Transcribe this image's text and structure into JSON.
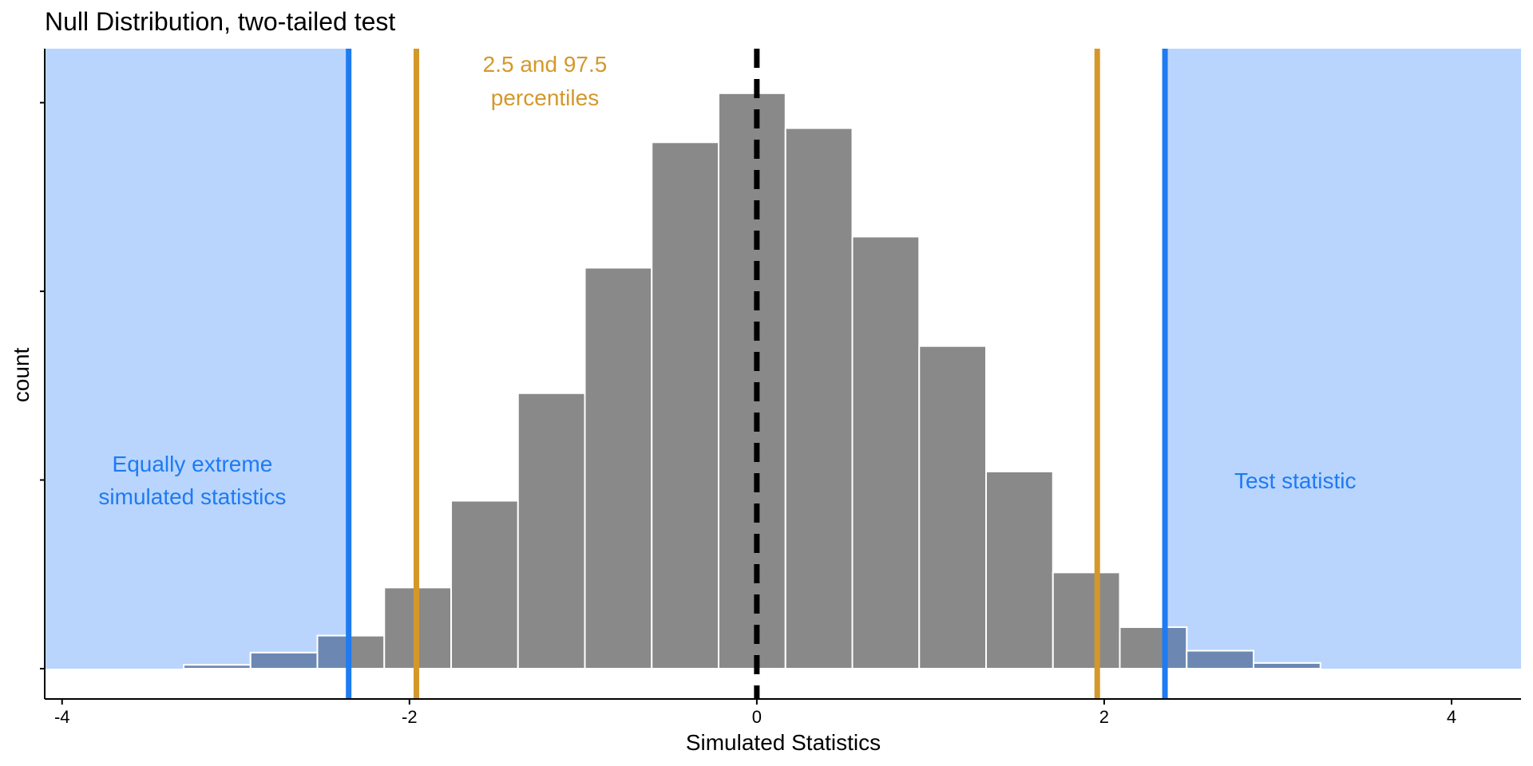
{
  "chart_data": {
    "type": "bar",
    "title": "Null Distribution, two-tailed test",
    "xlabel": "Simulated Statistics",
    "ylabel": "count",
    "xlim": [
      -4.1,
      4.4
    ],
    "ylim": [
      0,
      1240
    ],
    "x_ticks": [
      -4,
      -2,
      0,
      2,
      4
    ],
    "x_tick_labels": [
      "-4",
      "-2",
      "0",
      "2",
      "4"
    ],
    "y_ticks": [
      0,
      400,
      800,
      1200
    ],
    "grid": false,
    "legend": "none",
    "bin_width": 0.385,
    "bins": [
      {
        "x0": -3.3,
        "x1": -2.915,
        "count": 8
      },
      {
        "x0": -2.915,
        "x1": -2.53,
        "count": 34
      },
      {
        "x0": -2.53,
        "x1": -2.145,
        "count": 70
      },
      {
        "x0": -2.145,
        "x1": -1.76,
        "count": 172
      },
      {
        "x0": -1.76,
        "x1": -1.375,
        "count": 356
      },
      {
        "x0": -1.375,
        "x1": -0.99,
        "count": 584
      },
      {
        "x0": -0.99,
        "x1": -0.605,
        "count": 850
      },
      {
        "x0": -0.605,
        "x1": -0.22,
        "count": 1116
      },
      {
        "x0": -0.22,
        "x1": 0.165,
        "count": 1220
      },
      {
        "x0": 0.165,
        "x1": 0.55,
        "count": 1146
      },
      {
        "x0": 0.55,
        "x1": 0.935,
        "count": 916
      },
      {
        "x0": 0.935,
        "x1": 1.32,
        "count": 684
      },
      {
        "x0": 1.32,
        "x1": 1.705,
        "count": 418
      },
      {
        "x0": 1.705,
        "x1": 2.09,
        "count": 204
      },
      {
        "x0": 2.09,
        "x1": 2.475,
        "count": 88
      },
      {
        "x0": 2.475,
        "x1": 2.86,
        "count": 38
      },
      {
        "x0": 2.86,
        "x1": 3.245,
        "count": 12
      }
    ],
    "shaded_regions": [
      {
        "x0": -4.1,
        "x1": -2.35
      },
      {
        "x0": 2.35,
        "x1": 4.4
      }
    ],
    "vlines": [
      {
        "x": 0,
        "style": "dashed",
        "color": "#000000"
      },
      {
        "x": -2.35,
        "style": "solid",
        "color": "#1e7bf2"
      },
      {
        "x": 2.35,
        "style": "solid",
        "color": "#1e7bf2"
      },
      {
        "x": -1.96,
        "style": "solid",
        "color": "#d4982a"
      },
      {
        "x": 1.96,
        "style": "solid",
        "color": "#d4982a"
      }
    ],
    "annotations": [
      {
        "lines": [
          "2.5 and 97.5",
          "percentiles"
        ],
        "x": -1.22,
        "color": "#d4982a"
      },
      {
        "lines": [
          "Equally extreme",
          "simulated statistics"
        ],
        "x": -3.25,
        "color": "#1e7bf2"
      },
      {
        "lines": [
          "Test statistic"
        ],
        "x": 3.1,
        "color": "#1e7bf2"
      }
    ],
    "colors": {
      "bar": "#898989",
      "bar_stroke": "#ffffff",
      "shade": "#b9d5fd",
      "tail_bar": "#6c88b2",
      "test_stat": "#1e7bf2",
      "percentile": "#d4982a",
      "axis": "#000000"
    }
  }
}
